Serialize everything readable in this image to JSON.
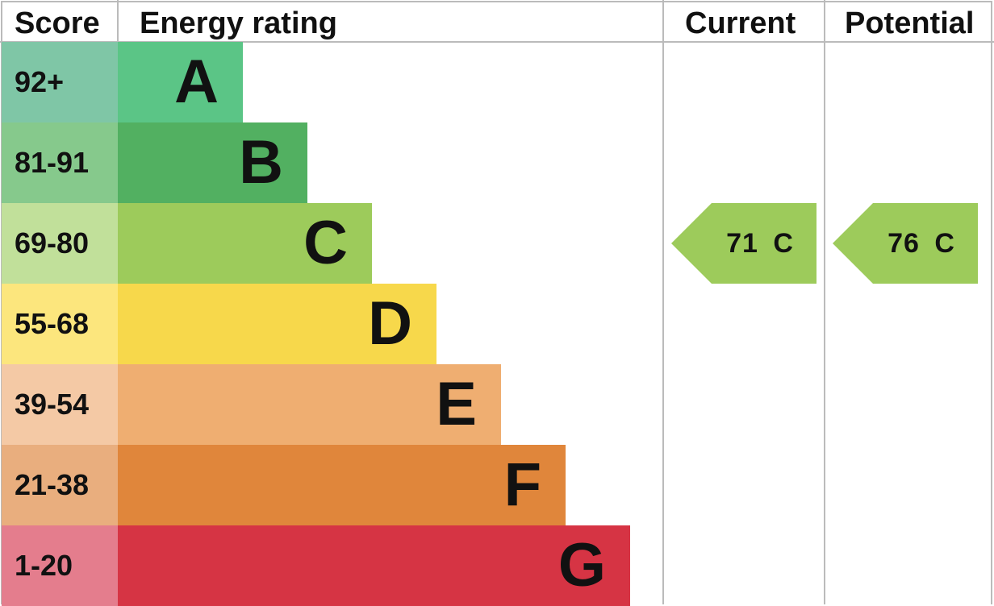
{
  "chart_data": {
    "type": "bar",
    "headers": {
      "score": "Score",
      "rating": "Energy rating",
      "current": "Current",
      "potential": "Potential"
    },
    "bands": [
      {
        "range": "92+",
        "letter": "A",
        "score_color": "#7fc6a6",
        "bar_color": "#5bc586"
      },
      {
        "range": "81-91",
        "letter": "B",
        "score_color": "#86c98c",
        "bar_color": "#52b061"
      },
      {
        "range": "69-80",
        "letter": "C",
        "score_color": "#c1e09a",
        "bar_color": "#9dcb5b"
      },
      {
        "range": "55-68",
        "letter": "D",
        "score_color": "#fce67d",
        "bar_color": "#f7d84b"
      },
      {
        "range": "39-54",
        "letter": "E",
        "score_color": "#f4c9a5",
        "bar_color": "#efae71"
      },
      {
        "range": "21-38",
        "letter": "F",
        "score_color": "#e9ae7e",
        "bar_color": "#e0863b"
      },
      {
        "range": "1-20",
        "letter": "G",
        "score_color": "#e47d8d",
        "bar_color": "#d63444"
      }
    ],
    "current": {
      "value": 71,
      "band": "C",
      "label": "71 C",
      "color": "#9dcb5b"
    },
    "potential": {
      "value": 76,
      "band": "C",
      "label": "76 C",
      "color": "#9dcb5b"
    }
  }
}
